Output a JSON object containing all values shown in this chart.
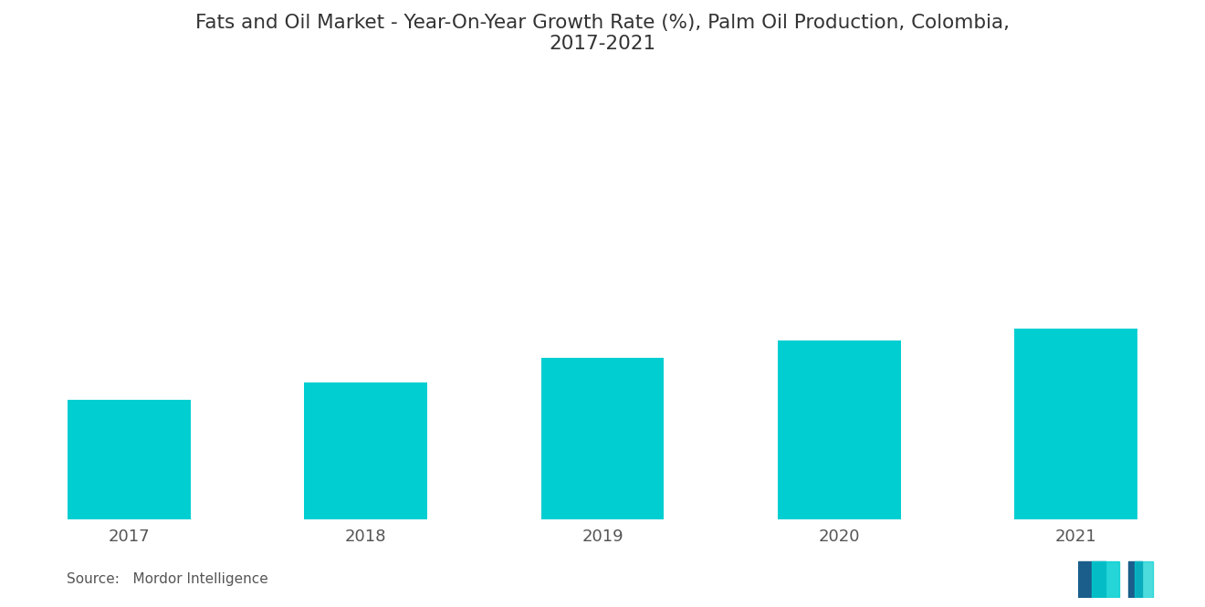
{
  "title": "Fats and Oil Market - Year-On-Year Growth Rate (%), Palm Oil Production, Colombia,\n2017-2021",
  "categories": [
    "2017",
    "2018",
    "2019",
    "2020",
    "2021"
  ],
  "values": [
    1.0,
    1.15,
    1.35,
    1.5,
    1.6
  ],
  "bar_color": "#00CED1",
  "background_color": "#ffffff",
  "title_fontsize": 15.5,
  "tick_fontsize": 13,
  "source_text": "Source:   Mordor Intelligence",
  "ylim": [
    0,
    4.0
  ],
  "bar_width": 0.52
}
